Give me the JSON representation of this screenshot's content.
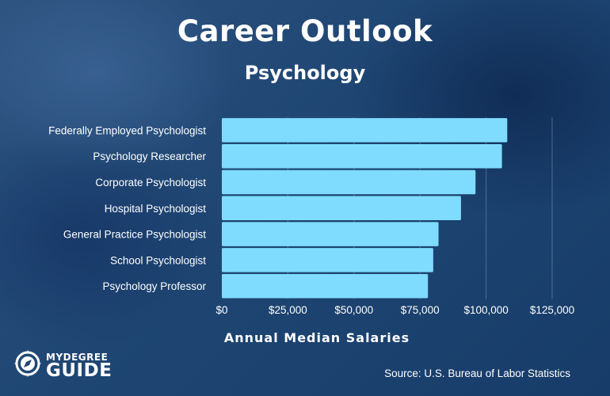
{
  "header": {
    "title": "Career Outlook",
    "subtitle": "Psychology"
  },
  "chart_data": {
    "type": "bar",
    "orientation": "horizontal",
    "categories": [
      "Federally Employed Psychologist",
      "Psychology Researcher",
      "Corporate Psychologist",
      "Hospital Psychologist",
      "General Practice Psychologist",
      "School Psychologist",
      "Psychology Professor"
    ],
    "values": [
      108000,
      106000,
      96000,
      90500,
      82000,
      80000,
      78000
    ],
    "xlabel": "Annual Median Salaries",
    "xlim": [
      0,
      125000
    ],
    "ticks": [
      0,
      25000,
      50000,
      75000,
      100000,
      125000
    ],
    "tick_labels": [
      "$0",
      "$25,000",
      "$50,000",
      "$75,000",
      "$100,000",
      "$125,000"
    ],
    "bar_color": "#7fdcff",
    "grid": true
  },
  "logo": {
    "line1": "MYDEGREE",
    "line2": "GUIDE"
  },
  "footer": {
    "source": "Source: U.S. Bureau of Labor Statistics"
  }
}
